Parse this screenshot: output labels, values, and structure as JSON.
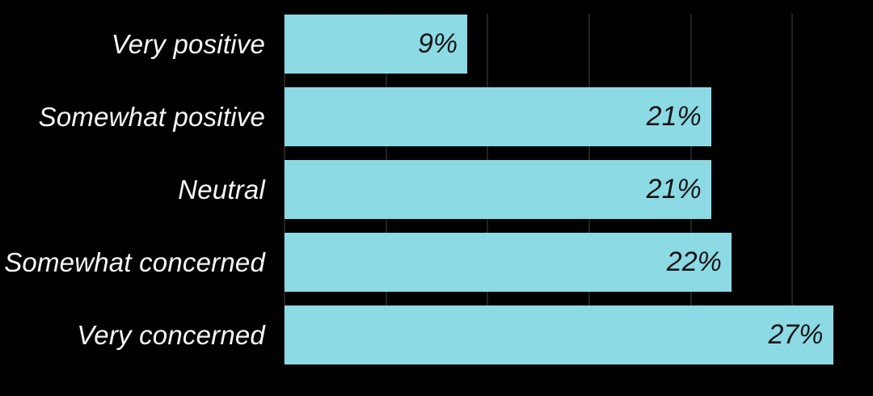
{
  "chart_data": {
    "type": "bar",
    "orientation": "horizontal",
    "title": "",
    "xlabel": "",
    "ylabel": "",
    "categories": [
      "Very positive",
      "Somewhat positive",
      "Neutral",
      "Somewhat concerned",
      "Very concerned"
    ],
    "values": [
      9,
      21,
      21,
      22,
      27
    ],
    "value_labels": [
      "9%",
      "21%",
      "21%",
      "22%",
      "27%"
    ],
    "xlim": [
      0,
      29
    ],
    "gridlines": [
      0,
      5,
      10,
      15,
      20,
      25
    ],
    "grid_visible": true,
    "legend_position": "none",
    "colors": {
      "background": "#000000",
      "bar": "#8cdae4",
      "gridline": "#232323",
      "category_label": "#f7f7f7",
      "value_label": "#151515"
    }
  }
}
